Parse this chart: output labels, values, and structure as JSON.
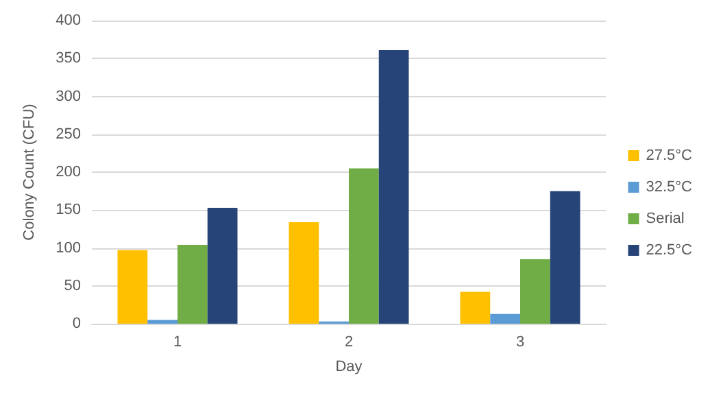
{
  "chart_data": {
    "type": "bar",
    "xlabel": "Day",
    "ylabel": "Colony Count (CFU)",
    "categories": [
      "1",
      "2",
      "3"
    ],
    "series": [
      {
        "name": "27.5°C",
        "color": "#ffc000",
        "values": [
          97,
          134,
          42
        ]
      },
      {
        "name": "32.5°C",
        "color": "#5b9bd5",
        "values": [
          5,
          3,
          13
        ]
      },
      {
        "name": "Serial",
        "color": "#70ad47",
        "values": [
          104,
          205,
          85
        ]
      },
      {
        "name": "22.5°C",
        "color": "#264478",
        "values": [
          153,
          361,
          175
        ]
      }
    ],
    "ylim": [
      0,
      400
    ],
    "yticks": [
      0,
      50,
      100,
      150,
      200,
      250,
      300,
      350,
      400
    ],
    "grid": "y",
    "legend": "right"
  }
}
